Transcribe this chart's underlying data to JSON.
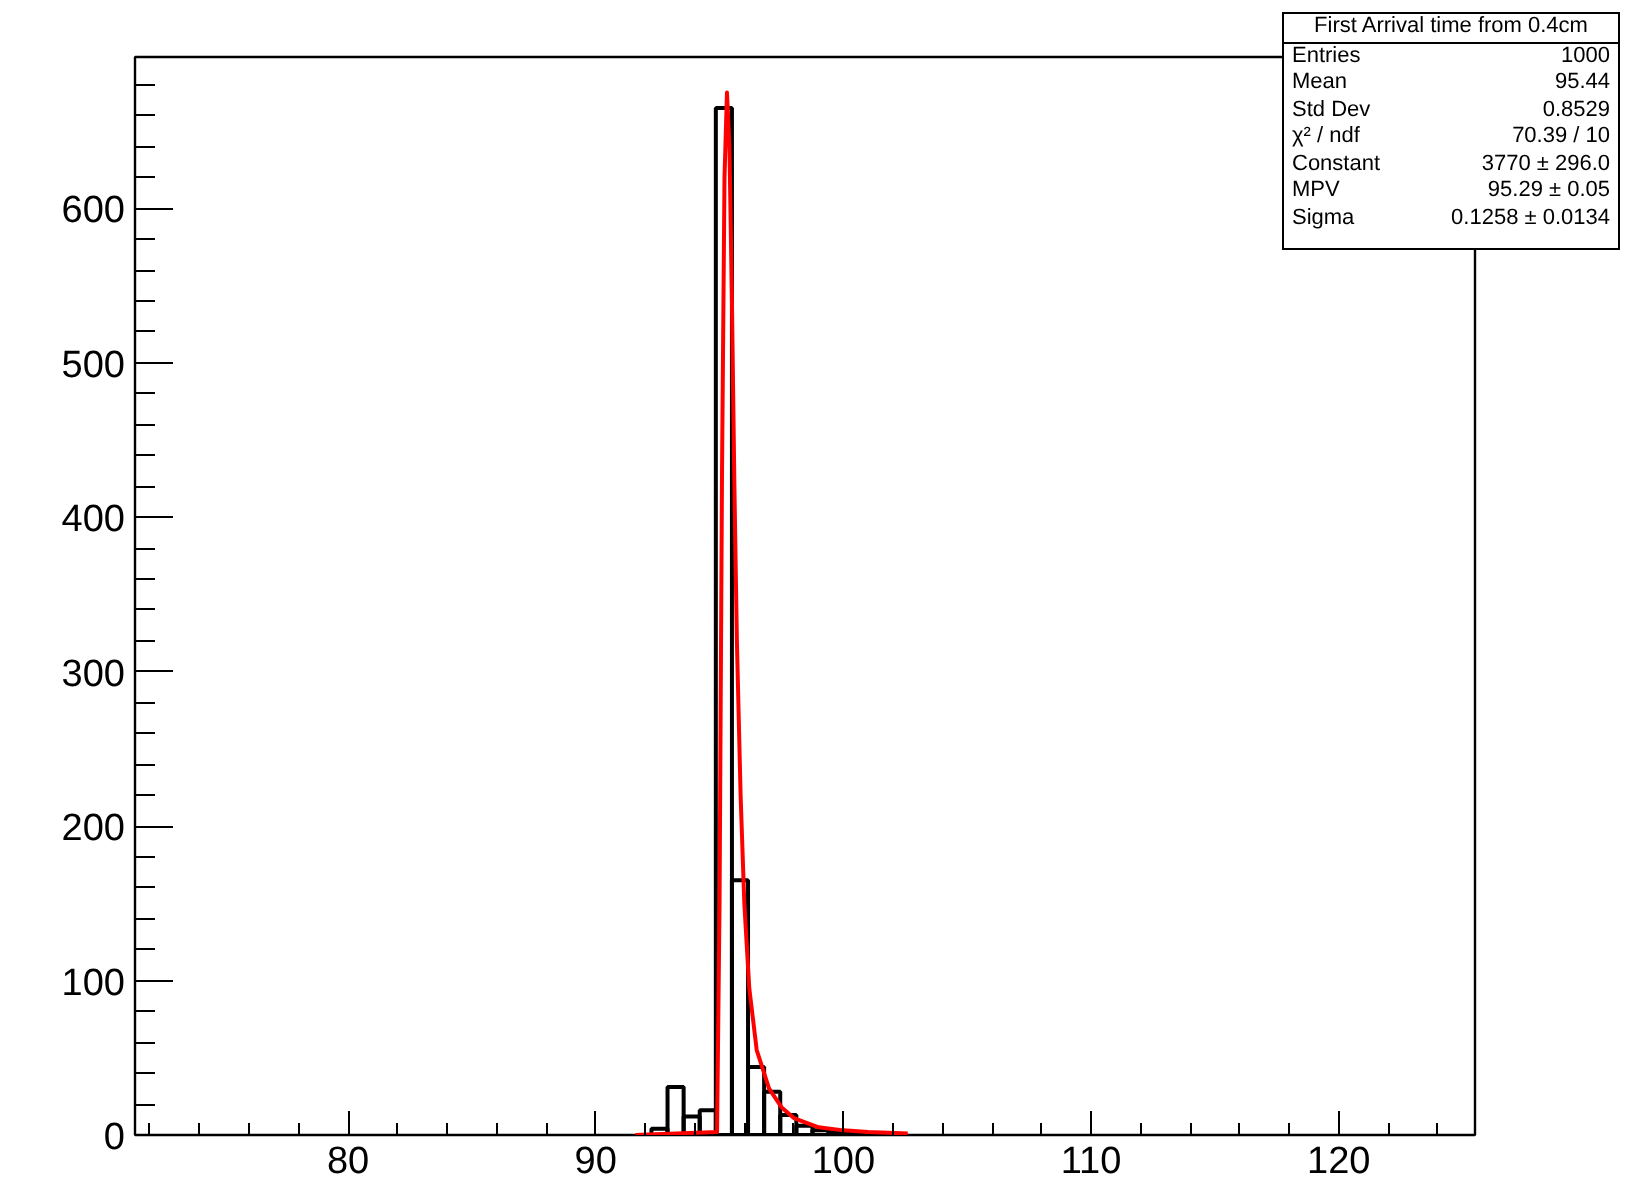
{
  "chart_data": {
    "type": "histogram",
    "title": "First Arrival time from 0.4cm",
    "series": [
      {
        "type": "histogram",
        "color": "#000000",
        "bins": [
          92.25,
          92.9,
          93.55,
          94.2,
          94.85,
          95.5,
          96.15,
          96.8,
          97.45,
          98.1,
          98.75,
          99.4,
          100.05,
          100.7,
          101.35
        ],
        "values": [
          4,
          31,
          12,
          16,
          665,
          165,
          44,
          28,
          13,
          6,
          3,
          2,
          1,
          1
        ]
      },
      {
        "type": "line",
        "color": "#ff0000",
        "x": [
          91.6,
          94.9,
          95.0,
          95.1,
          95.2,
          95.3,
          95.4,
          95.5,
          95.6,
          95.7,
          95.85,
          96.0,
          96.2,
          96.5,
          97.0,
          97.5,
          98.0,
          99.0,
          100.0,
          101.0,
          102.6
        ],
        "values": [
          0,
          2,
          150,
          430,
          620,
          675,
          640,
          540,
          420,
          320,
          220,
          150,
          95,
          55,
          30,
          18,
          11,
          5,
          3,
          2,
          1
        ]
      }
    ],
    "xlim": [
      71.4,
      125.5
    ],
    "ylim": [
      0,
      698
    ],
    "xticks": [
      80,
      90,
      100,
      110,
      120
    ],
    "yticks": [
      0,
      100,
      200,
      300,
      400,
      500,
      600
    ],
    "grid": false,
    "annotations": [
      "Entries\t1000",
      "Mean\t95.44",
      "Std Dev\t0.8529",
      "χ² / ndf\t70.39 / 10",
      "Constant\t3770 ± 296.0",
      "MPV\t95.29 ± 0.05",
      "Sigma\t0.1258 ± 0.0134"
    ]
  }
}
